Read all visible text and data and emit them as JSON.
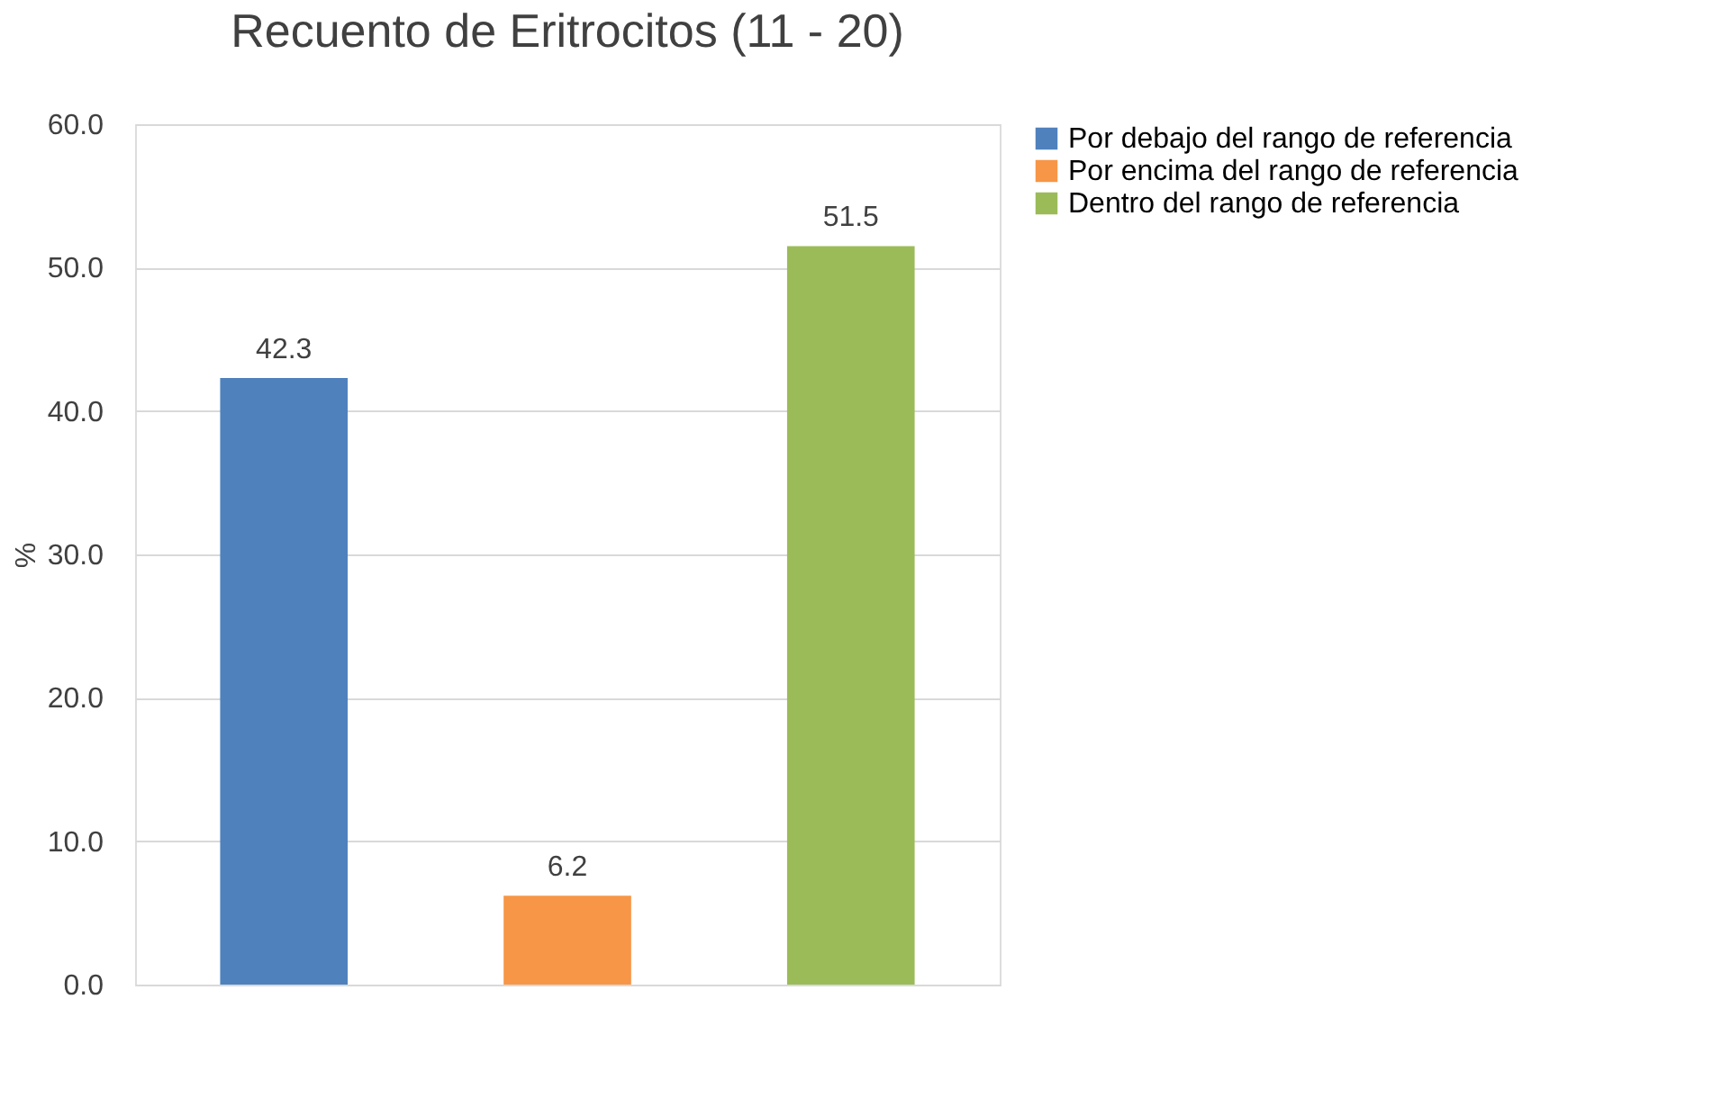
{
  "chart_data": {
    "type": "bar",
    "title": "Recuento de Eritrocitos (11 - 20)",
    "ylabel": "%",
    "categories": [
      null,
      null,
      null
    ],
    "series": [
      {
        "name": "Por debajo del rango de referencia",
        "color": "#4f81bd",
        "values": [
          42.3,
          null,
          null
        ]
      },
      {
        "name": "Por encima del rango de referencia",
        "color": "#f79646",
        "values": [
          null,
          6.2,
          null
        ]
      },
      {
        "name": "Dentro del rango de referencia",
        "color": "#9bbb59",
        "values": [
          null,
          null,
          51.5
        ]
      }
    ],
    "ylim": [
      0,
      60
    ],
    "yticks": [
      {
        "value": 0,
        "label": "0.0"
      },
      {
        "value": 10,
        "label": "10.0"
      },
      {
        "value": 20,
        "label": "20.0"
      },
      {
        "value": 30,
        "label": "30.0"
      },
      {
        "value": 40,
        "label": "40.0"
      },
      {
        "value": 50,
        "label": "50.0"
      },
      {
        "value": 60,
        "label": "60.0"
      }
    ],
    "grid": "y",
    "legend": "right",
    "data_labels": true,
    "tick_labels": "y"
  }
}
